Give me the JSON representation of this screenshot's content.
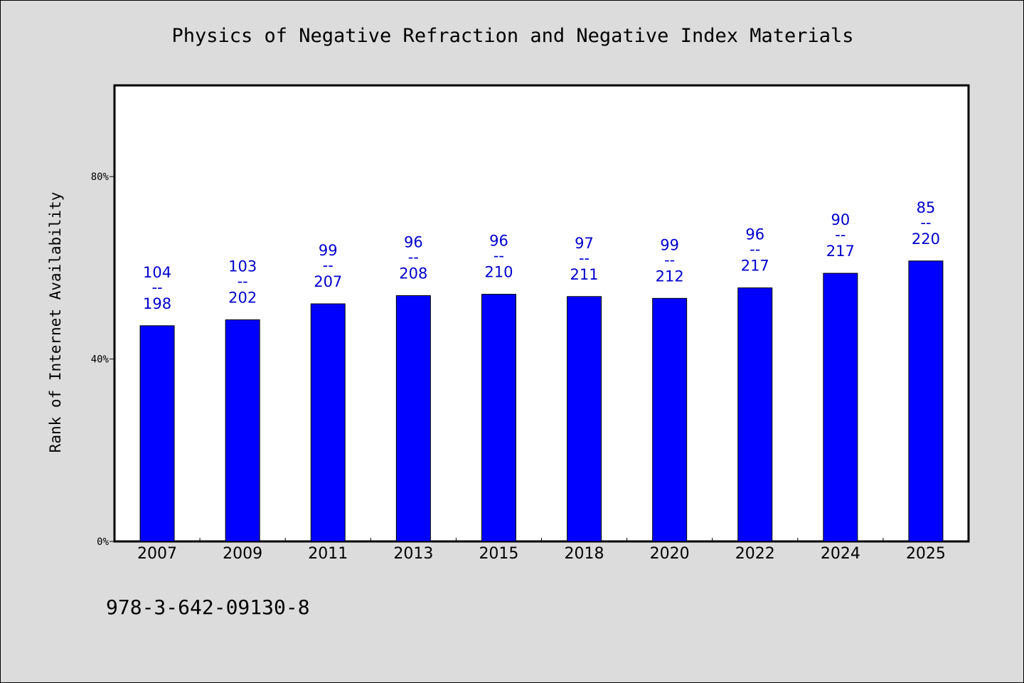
{
  "chart_data": {
    "type": "bar",
    "title": "Physics of Negative Refraction and Negative Index Materials",
    "ylabel": "Rank of Internet Availability",
    "xlabel": "",
    "ylim": [
      0,
      100
    ],
    "yticks": [
      0,
      40,
      80
    ],
    "ytick_labels": [
      "0%",
      "40%",
      "80%"
    ],
    "grid": false,
    "bar_color": "#0000ff",
    "label_color": "#0000cc",
    "categories": [
      "2007",
      "2009",
      "2011",
      "2013",
      "2015",
      "2018",
      "2020",
      "2022",
      "2024",
      "2025"
    ],
    "values": [
      47.3,
      48.6,
      52.1,
      53.9,
      54.2,
      53.7,
      53.3,
      55.6,
      58.8,
      61.5
    ],
    "rank": [
      "104",
      "103",
      "99",
      "96",
      "96",
      "97",
      "99",
      "96",
      "90",
      "85"
    ],
    "total": [
      "198",
      "202",
      "207",
      "208",
      "210",
      "211",
      "212",
      "217",
      "217",
      "220"
    ],
    "label_separator": "--"
  },
  "footer": {
    "isbn": "978-3-642-09130-8"
  }
}
